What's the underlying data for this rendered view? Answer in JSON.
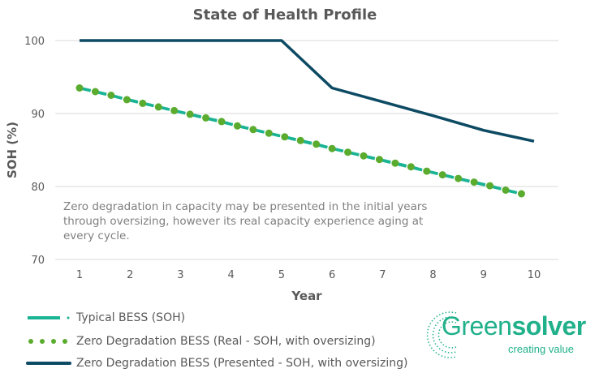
{
  "chart_data": {
    "type": "line",
    "title": "State of Health Profile",
    "xlabel": "Year",
    "ylabel": "SOH (%)",
    "xlim": [
      1,
      10
    ],
    "ylim": [
      70,
      100
    ],
    "xticks": [
      1,
      2,
      3,
      4,
      5,
      6,
      7,
      8,
      9,
      10
    ],
    "yticks": [
      70,
      80,
      90,
      100
    ],
    "grid": "horizontal",
    "legend_position": "bottom-left",
    "annotation": "Zero degradation in capacity may be presented in the initial years through oversizing, however its real capacity experience aging at every cycle.",
    "series": [
      {
        "name": "Typical BESS (SOH)",
        "style": "dashed",
        "color": "#1ab394",
        "x": [
          1,
          9.75
        ],
        "values": [
          93.5,
          79.0
        ]
      },
      {
        "name": "Zero Degradation BESS (Real - SOH, with oversizing)",
        "style": "dotted",
        "color": "#5aab2e",
        "x": [
          1,
          1.3125,
          1.625,
          1.9375,
          2.25,
          2.5625,
          2.875,
          3.1875,
          3.5,
          3.8125,
          4.125,
          4.4375,
          4.75,
          5.0625,
          5.375,
          5.6875,
          6,
          6.3125,
          6.625,
          6.9375,
          7.25,
          7.5625,
          7.875,
          8.1875,
          8.5,
          8.8125,
          9.125,
          9.4375,
          9.75
        ],
        "values": [
          93.5,
          93.0,
          92.5,
          91.9,
          91.4,
          90.9,
          90.4,
          89.9,
          89.4,
          88.9,
          88.3,
          87.8,
          87.3,
          86.8,
          86.3,
          85.8,
          85.2,
          84.7,
          84.2,
          83.7,
          83.2,
          82.7,
          82.1,
          81.6,
          81.1,
          80.6,
          80.1,
          79.5,
          79.0
        ]
      },
      {
        "name": "Zero Degradation BESS (Presented - SOH, with oversizing)",
        "style": "solid",
        "color": "#0d4a63",
        "x": [
          1,
          2,
          3,
          4,
          5,
          6,
          7,
          8,
          9,
          10
        ],
        "values": [
          100,
          100,
          100,
          100,
          100,
          93.5,
          91.6,
          89.7,
          87.7,
          86.2
        ]
      }
    ]
  },
  "logo": {
    "brand_light": "Green",
    "brand_bold": "solver",
    "tagline": "creating value",
    "color": "#20b08a"
  }
}
